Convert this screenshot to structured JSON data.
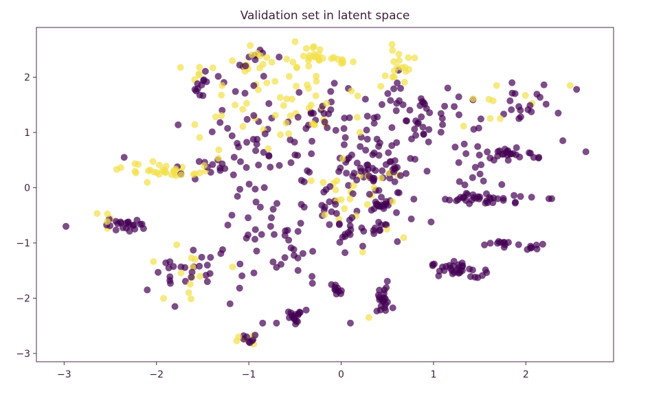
{
  "chart_data": {
    "type": "scatter",
    "title": "Validation set in latent space",
    "xlabel": "",
    "ylabel": "",
    "xlim": [
      -3.3,
      2.95
    ],
    "ylim": [
      -3.15,
      2.9
    ],
    "xticks": [
      -3,
      -2,
      -1,
      0,
      1,
      2
    ],
    "yticks": [
      -3,
      -2,
      -1,
      0,
      1,
      2
    ],
    "grid": false,
    "legend": "none",
    "marker_opacity": 0.7,
    "colors": {
      "class_a": "#440154",
      "class_b": "#f2e04a"
    },
    "clusters": [
      {
        "cls": "class_a",
        "cx": 0.45,
        "cy": -2.05,
        "sx": 0.05,
        "sy": 0.12,
        "n": 22
      },
      {
        "cls": "class_a",
        "cx": -0.05,
        "cy": -1.85,
        "sx": 0.05,
        "sy": 0.06,
        "n": 10
      },
      {
        "cls": "class_a",
        "cx": -0.48,
        "cy": -2.35,
        "sx": 0.05,
        "sy": 0.07,
        "n": 16
      },
      {
        "cls": "class_a",
        "cx": -1.0,
        "cy": -2.75,
        "sx": 0.05,
        "sy": 0.04,
        "n": 8
      },
      {
        "cls": "class_a",
        "cx": 1.25,
        "cy": -1.48,
        "sx": 0.14,
        "sy": 0.07,
        "n": 32
      },
      {
        "cls": "class_a",
        "cx": 1.7,
        "cy": -1.02,
        "sx": 0.07,
        "sy": 0.03,
        "n": 10
      },
      {
        "cls": "class_a",
        "cx": 2.05,
        "cy": -1.07,
        "sx": 0.05,
        "sy": 0.04,
        "n": 8
      },
      {
        "cls": "class_a",
        "cx": 1.6,
        "cy": -0.2,
        "sx": 0.25,
        "sy": 0.05,
        "n": 34
      },
      {
        "cls": "class_a",
        "cx": 1.85,
        "cy": 0.62,
        "sx": 0.2,
        "sy": 0.06,
        "n": 26
      },
      {
        "cls": "class_a",
        "cx": 2.0,
        "cy": 1.5,
        "sx": 0.14,
        "sy": 0.18,
        "n": 16
      },
      {
        "cls": "class_a",
        "cx": -2.3,
        "cy": -0.65,
        "sx": 0.15,
        "sy": 0.07,
        "n": 22
      },
      {
        "cls": "class_a",
        "cx": -1.7,
        "cy": -1.5,
        "sx": 0.14,
        "sy": 0.2,
        "n": 22
      },
      {
        "cls": "class_a",
        "cx": 0.35,
        "cy": 0.3,
        "sx": 0.15,
        "sy": 0.1,
        "n": 24
      },
      {
        "cls": "class_a",
        "cx": 0.0,
        "cy": 0.6,
        "sx": 0.55,
        "sy": 0.65,
        "n": 110
      },
      {
        "cls": "class_a",
        "cx": -0.9,
        "cy": 1.1,
        "sx": 0.35,
        "sy": 0.55,
        "n": 40
      },
      {
        "cls": "class_a",
        "cx": 0.7,
        "cy": 1.3,
        "sx": 0.25,
        "sy": 0.3,
        "n": 30
      },
      {
        "cls": "class_a",
        "cx": 0.2,
        "cy": -0.7,
        "sx": 0.3,
        "sy": 0.25,
        "n": 30
      },
      {
        "cls": "class_a",
        "cx": 0.4,
        "cy": -0.3,
        "sx": 0.1,
        "sy": 0.08,
        "n": 14
      },
      {
        "cls": "class_a",
        "cx": -1.5,
        "cy": 1.9,
        "sx": 0.06,
        "sy": 0.1,
        "n": 10
      },
      {
        "cls": "class_a",
        "cx": -1.0,
        "cy": 2.3,
        "sx": 0.08,
        "sy": 0.1,
        "n": 8
      },
      {
        "cls": "class_a",
        "cx": -1.4,
        "cy": 0.35,
        "sx": 0.15,
        "sy": 0.08,
        "n": 14
      },
      {
        "cls": "class_a",
        "cx": -0.5,
        "cy": -0.8,
        "sx": 0.35,
        "sy": 0.35,
        "n": 34
      },
      {
        "cls": "class_a",
        "cx": -0.85,
        "cy": -1.5,
        "sx": 0.3,
        "sy": 0.2,
        "n": 12
      },
      {
        "cls": "class_a",
        "cx": 1.2,
        "cy": 1.1,
        "sx": 0.2,
        "sy": 0.2,
        "n": 12
      },
      {
        "cls": "class_a",
        "cx": 1.5,
        "cy": 0.3,
        "sx": 0.2,
        "sy": 0.15,
        "n": 10
      },
      {
        "cls": "class_b",
        "cx": -1.85,
        "cy": 0.3,
        "sx": 0.25,
        "sy": 0.08,
        "n": 34
      },
      {
        "cls": "class_b",
        "cx": -0.35,
        "cy": 2.3,
        "sx": 0.1,
        "sy": 0.12,
        "n": 20
      },
      {
        "cls": "class_b",
        "cx": 0.0,
        "cy": 2.3,
        "sx": 0.1,
        "sy": 0.05,
        "n": 8
      },
      {
        "cls": "class_b",
        "cx": -0.9,
        "cy": 2.35,
        "sx": 0.15,
        "sy": 0.08,
        "n": 10
      },
      {
        "cls": "class_b",
        "cx": -0.8,
        "cy": 1.9,
        "sx": 0.25,
        "sy": 0.2,
        "n": 16
      },
      {
        "cls": "class_b",
        "cx": 0.65,
        "cy": 2.2,
        "sx": 0.1,
        "sy": 0.15,
        "n": 12
      },
      {
        "cls": "class_b",
        "cx": -1.2,
        "cy": 1.25,
        "sx": 0.3,
        "sy": 0.3,
        "n": 18
      },
      {
        "cls": "class_b",
        "cx": -0.3,
        "cy": 1.3,
        "sx": 0.3,
        "sy": 0.3,
        "n": 22
      },
      {
        "cls": "class_b",
        "cx": 0.1,
        "cy": 0.0,
        "sx": 0.3,
        "sy": 0.3,
        "n": 18
      },
      {
        "cls": "class_b",
        "cx": -1.6,
        "cy": -1.4,
        "sx": 0.2,
        "sy": 0.25,
        "n": 12
      },
      {
        "cls": "class_b",
        "cx": 1.7,
        "cy": 1.4,
        "sx": 0.2,
        "sy": 0.2,
        "n": 8
      },
      {
        "cls": "class_b",
        "cx": -2.5,
        "cy": -0.6,
        "sx": 0.08,
        "sy": 0.1,
        "n": 5
      },
      {
        "cls": "class_b",
        "cx": 0.3,
        "cy": -0.5,
        "sx": 0.2,
        "sy": 0.2,
        "n": 8
      },
      {
        "cls": "class_b",
        "cx": 0.5,
        "cy": 2.0,
        "sx": 0.1,
        "sy": 0.1,
        "n": 6
      },
      {
        "cls": "class_b",
        "cx": -1.05,
        "cy": -2.75,
        "sx": 0.08,
        "sy": 0.05,
        "n": 4
      },
      {
        "cls": "class_b",
        "cx": -1.5,
        "cy": 2.1,
        "sx": 0.1,
        "sy": 0.1,
        "n": 6
      }
    ],
    "points": [
      {
        "x": -2.98,
        "y": -0.7,
        "cls": "class_a"
      },
      {
        "x": 2.65,
        "y": 0.65,
        "cls": "class_a"
      },
      {
        "x": 2.55,
        "y": 1.78,
        "cls": "class_a"
      },
      {
        "x": 2.48,
        "y": 1.85,
        "cls": "class_b"
      },
      {
        "x": 2.4,
        "y": 0.85,
        "cls": "class_a"
      },
      {
        "x": 2.35,
        "y": 1.35,
        "cls": "class_a"
      },
      {
        "x": 2.25,
        "y": -0.2,
        "cls": "class_a"
      },
      {
        "x": 2.28,
        "y": -0.2,
        "cls": "class_a"
      },
      {
        "x": 0.1,
        "y": -2.45,
        "cls": "class_a"
      },
      {
        "x": 0.3,
        "y": -2.35,
        "cls": "class_b"
      },
      {
        "x": -1.65,
        "y": -1.9,
        "cls": "class_b"
      },
      {
        "x": -1.8,
        "y": -2.15,
        "cls": "class_a"
      },
      {
        "x": -2.1,
        "y": -1.85,
        "cls": "class_a"
      },
      {
        "x": 1.45,
        "y": -1.62,
        "cls": "class_a"
      },
      {
        "x": 1.85,
        "y": 1.9,
        "cls": "class_a"
      },
      {
        "x": 1.6,
        "y": 1.6,
        "cls": "class_b"
      },
      {
        "x": -2.35,
        "y": 0.55,
        "cls": "class_a"
      },
      {
        "x": -0.85,
        "y": -2.45,
        "cls": "class_a"
      },
      {
        "x": -0.7,
        "y": -2.45,
        "cls": "class_a"
      },
      {
        "x": -0.95,
        "y": -2.68,
        "cls": "class_b"
      }
    ]
  }
}
